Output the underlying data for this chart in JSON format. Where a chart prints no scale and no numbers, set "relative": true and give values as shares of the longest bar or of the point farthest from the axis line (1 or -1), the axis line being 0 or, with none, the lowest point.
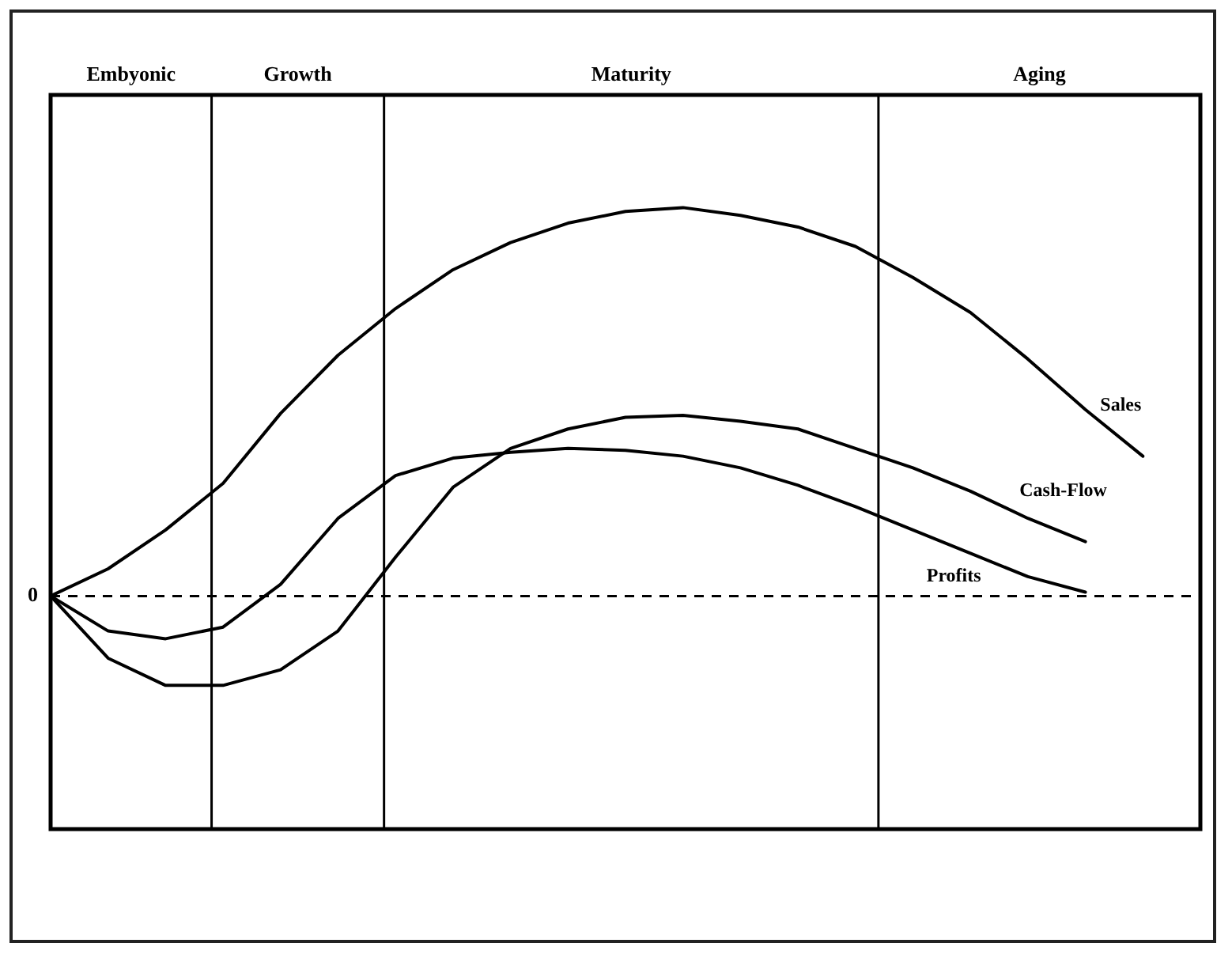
{
  "chart_data": {
    "type": "line",
    "relative": true,
    "legend": false,
    "grid": false,
    "marker": "none",
    "line_style": "solid",
    "categories": [
      null,
      null,
      null,
      null,
      null,
      null,
      null,
      null,
      null,
      null,
      null,
      null,
      null,
      null,
      null,
      null,
      null,
      null,
      null,
      null,
      null
    ],
    "series": [
      {
        "name": "Sales",
        "color": "#000000",
        "values": [
          0,
          0.07,
          0.17,
          0.29,
          0.47,
          0.62,
          0.74,
          0.84,
          0.91,
          0.96,
          0.99,
          1.0,
          0.98,
          0.95,
          0.9,
          0.82,
          0.73,
          0.61,
          0.48,
          0.36,
          null
        ]
      },
      {
        "name": "Cash-Flow",
        "color": "#000000",
        "values": [
          0,
          -0.16,
          -0.23,
          -0.23,
          -0.19,
          -0.09,
          0.1,
          0.28,
          0.38,
          0.43,
          0.46,
          0.465,
          0.45,
          0.43,
          0.38,
          0.33,
          0.27,
          0.2,
          0.14,
          null,
          null
        ]
      },
      {
        "name": "Profits",
        "color": "#000000",
        "values": [
          0,
          -0.09,
          -0.11,
          -0.08,
          0.03,
          0.2,
          0.31,
          0.355,
          0.37,
          0.38,
          0.375,
          0.36,
          0.33,
          0.285,
          0.23,
          0.17,
          0.11,
          0.05,
          0.01,
          null,
          null
        ]
      }
    ],
    "ref_lines": [
      {
        "axis": "y",
        "value": 0,
        "label": "0",
        "line_style": "dashed"
      }
    ],
    "annotations": [
      "Embyonic",
      "Growth",
      "Maturity",
      "Aging"
    ]
  }
}
